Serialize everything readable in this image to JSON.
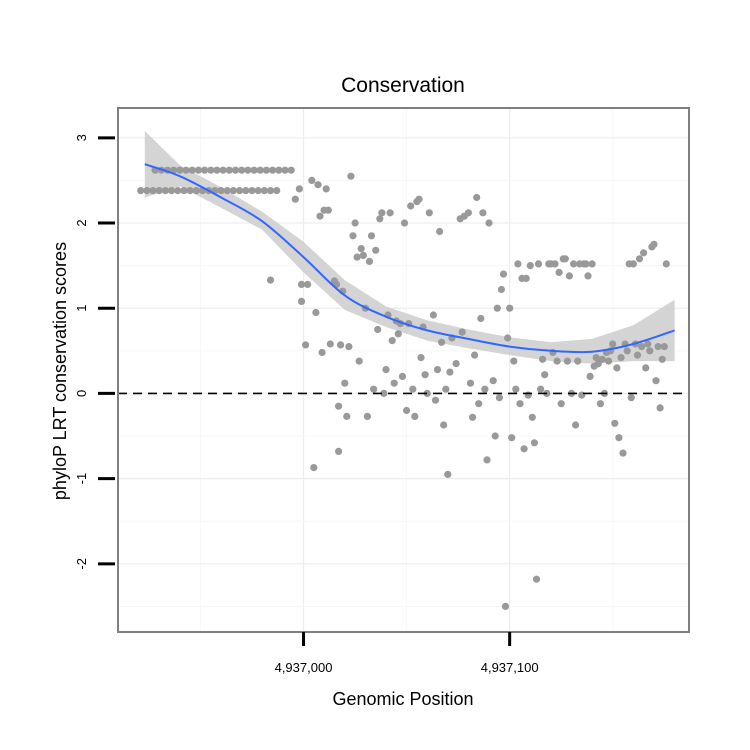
{
  "chart_data": {
    "type": "scatter",
    "title": "Conservation",
    "xlabel": "Genomic Position",
    "ylabel": "phyloP LRT conservation scores",
    "xlim": [
      4936910,
      4937187
    ],
    "ylim": [
      -2.8,
      3.35
    ],
    "x_ticks": [
      4937000,
      4937100
    ],
    "x_tick_labels": [
      "4,937,000",
      "4,937,100"
    ],
    "y_ticks": [
      -2,
      -1,
      0,
      1,
      2,
      3
    ],
    "y_tick_labels": [
      "-2",
      "-1",
      "0",
      "1",
      "2",
      "3"
    ],
    "grid": true,
    "reference_line_y": 0,
    "colors": {
      "points": "#999999",
      "trend": "#3366ff",
      "band": "#cccccc",
      "panel_border": "#7f7f7f"
    },
    "trend": {
      "x": [
        4936923,
        4936940,
        4936960,
        4936980,
        4937000,
        4937020,
        4937040,
        4937060,
        4937080,
        4937100,
        4937120,
        4937140,
        4937160,
        4937180
      ],
      "y": [
        2.69,
        2.55,
        2.3,
        2.02,
        1.6,
        1.15,
        0.9,
        0.74,
        0.64,
        0.55,
        0.5,
        0.49,
        0.58,
        0.74
      ],
      "lower": [
        2.3,
        2.43,
        2.18,
        1.92,
        1.42,
        0.98,
        0.78,
        0.62,
        0.53,
        0.45,
        0.38,
        0.35,
        0.38,
        0.38
      ],
      "upper": [
        3.08,
        2.68,
        2.42,
        2.13,
        1.78,
        1.33,
        1.02,
        0.86,
        0.75,
        0.66,
        0.6,
        0.64,
        0.8,
        1.1
      ]
    },
    "points": [
      {
        "x": 4936921,
        "y": 2.38
      },
      {
        "x": 4936924,
        "y": 2.38
      },
      {
        "x": 4936927,
        "y": 2.38
      },
      {
        "x": 4936930,
        "y": 2.38
      },
      {
        "x": 4936933,
        "y": 2.38
      },
      {
        "x": 4936936,
        "y": 2.38
      },
      {
        "x": 4936939,
        "y": 2.38
      },
      {
        "x": 4936942,
        "y": 2.38
      },
      {
        "x": 4936945,
        "y": 2.38
      },
      {
        "x": 4936948,
        "y": 2.38
      },
      {
        "x": 4936951,
        "y": 2.38
      },
      {
        "x": 4936954,
        "y": 2.38
      },
      {
        "x": 4936957,
        "y": 2.38
      },
      {
        "x": 4936960,
        "y": 2.38
      },
      {
        "x": 4936963,
        "y": 2.38
      },
      {
        "x": 4936966,
        "y": 2.38
      },
      {
        "x": 4936969,
        "y": 2.38
      },
      {
        "x": 4936972,
        "y": 2.38
      },
      {
        "x": 4936975,
        "y": 2.38
      },
      {
        "x": 4936978,
        "y": 2.38
      },
      {
        "x": 4936981,
        "y": 2.38
      },
      {
        "x": 4936984,
        "y": 2.38
      },
      {
        "x": 4936987,
        "y": 2.38
      },
      {
        "x": 4936928,
        "y": 2.62
      },
      {
        "x": 4936931,
        "y": 2.62
      },
      {
        "x": 4936934,
        "y": 2.62
      },
      {
        "x": 4936937,
        "y": 2.62
      },
      {
        "x": 4936940,
        "y": 2.62
      },
      {
        "x": 4936943,
        "y": 2.62
      },
      {
        "x": 4936946,
        "y": 2.62
      },
      {
        "x": 4936949,
        "y": 2.62
      },
      {
        "x": 4936952,
        "y": 2.62
      },
      {
        "x": 4936955,
        "y": 2.62
      },
      {
        "x": 4936958,
        "y": 2.62
      },
      {
        "x": 4936961,
        "y": 2.62
      },
      {
        "x": 4936964,
        "y": 2.62
      },
      {
        "x": 4936967,
        "y": 2.62
      },
      {
        "x": 4936970,
        "y": 2.62
      },
      {
        "x": 4936973,
        "y": 2.62
      },
      {
        "x": 4936976,
        "y": 2.62
      },
      {
        "x": 4936979,
        "y": 2.62
      },
      {
        "x": 4936982,
        "y": 2.62
      },
      {
        "x": 4936985,
        "y": 2.62
      },
      {
        "x": 4936988,
        "y": 2.62
      },
      {
        "x": 4936991,
        "y": 2.62
      },
      {
        "x": 4936994,
        "y": 2.62
      },
      {
        "x": 4936984,
        "y": 1.33
      },
      {
        "x": 4936996,
        "y": 2.28
      },
      {
        "x": 4936998,
        "y": 2.4
      },
      {
        "x": 4936999,
        "y": 1.28
      },
      {
        "x": 4936999,
        "y": 1.08
      },
      {
        "x": 4937001,
        "y": 0.57
      },
      {
        "x": 4937002,
        "y": 1.28
      },
      {
        "x": 4937004,
        "y": 2.5
      },
      {
        "x": 4937005,
        "y": -0.87
      },
      {
        "x": 4937006,
        "y": 0.95
      },
      {
        "x": 4937007,
        "y": 2.45
      },
      {
        "x": 4937008,
        "y": 2.08
      },
      {
        "x": 4937009,
        "y": 0.48
      },
      {
        "x": 4937010,
        "y": 2.15
      },
      {
        "x": 4937011,
        "y": 2.4
      },
      {
        "x": 4937012,
        "y": 2.15
      },
      {
        "x": 4937013,
        "y": 0.58
      },
      {
        "x": 4937015,
        "y": 1.32
      },
      {
        "x": 4937016,
        "y": 1.28
      },
      {
        "x": 4937017,
        "y": -0.68
      },
      {
        "x": 4937017,
        "y": -0.15
      },
      {
        "x": 4937018,
        "y": 0.57
      },
      {
        "x": 4937019,
        "y": 1.2
      },
      {
        "x": 4937020,
        "y": 0.12
      },
      {
        "x": 4937021,
        "y": -0.27
      },
      {
        "x": 4937022,
        "y": 0.55
      },
      {
        "x": 4937023,
        "y": 2.55
      },
      {
        "x": 4937024,
        "y": 1.85
      },
      {
        "x": 4937025,
        "y": 2.0
      },
      {
        "x": 4937026,
        "y": 1.6
      },
      {
        "x": 4937027,
        "y": 0.38
      },
      {
        "x": 4937028,
        "y": 1.7
      },
      {
        "x": 4937029,
        "y": 1.62
      },
      {
        "x": 4937030,
        "y": 1.0
      },
      {
        "x": 4937031,
        "y": -0.27
      },
      {
        "x": 4937032,
        "y": 1.55
      },
      {
        "x": 4937033,
        "y": 1.85
      },
      {
        "x": 4937034,
        "y": 0.05
      },
      {
        "x": 4937035,
        "y": 1.68
      },
      {
        "x": 4937036,
        "y": 0.75
      },
      {
        "x": 4937037,
        "y": 2.05
      },
      {
        "x": 4937038,
        "y": 2.12
      },
      {
        "x": 4937039,
        "y": 0.0
      },
      {
        "x": 4937040,
        "y": 0.28
      },
      {
        "x": 4937041,
        "y": 0.92
      },
      {
        "x": 4937042,
        "y": 2.12
      },
      {
        "x": 4937043,
        "y": 0.62
      },
      {
        "x": 4937044,
        "y": 0.12
      },
      {
        "x": 4937045,
        "y": 0.85
      },
      {
        "x": 4937046,
        "y": 0.7
      },
      {
        "x": 4937047,
        "y": 0.82
      },
      {
        "x": 4937048,
        "y": 0.2
      },
      {
        "x": 4937049,
        "y": 2.0
      },
      {
        "x": 4937050,
        "y": -0.2
      },
      {
        "x": 4937051,
        "y": 0.82
      },
      {
        "x": 4937052,
        "y": 2.2
      },
      {
        "x": 4937053,
        "y": 0.05
      },
      {
        "x": 4937054,
        "y": -0.27
      },
      {
        "x": 4937055,
        "y": 2.25
      },
      {
        "x": 4937056,
        "y": 2.28
      },
      {
        "x": 4937057,
        "y": 0.42
      },
      {
        "x": 4937058,
        "y": 0.78
      },
      {
        "x": 4937059,
        "y": 0.22
      },
      {
        "x": 4937060,
        "y": 0.0
      },
      {
        "x": 4937061,
        "y": 2.12
      },
      {
        "x": 4937063,
        "y": 0.92
      },
      {
        "x": 4937064,
        "y": -0.08
      },
      {
        "x": 4937065,
        "y": 0.28
      },
      {
        "x": 4937066,
        "y": 1.9
      },
      {
        "x": 4937067,
        "y": 0.6
      },
      {
        "x": 4937068,
        "y": -0.37
      },
      {
        "x": 4937069,
        "y": 0.05
      },
      {
        "x": 4937070,
        "y": -0.95
      },
      {
        "x": 4937071,
        "y": 0.25
      },
      {
        "x": 4937072,
        "y": 0.65
      },
      {
        "x": 4937074,
        "y": 0.35
      },
      {
        "x": 4937076,
        "y": 2.05
      },
      {
        "x": 4937077,
        "y": 0.72
      },
      {
        "x": 4937078,
        "y": 2.08
      },
      {
        "x": 4937080,
        "y": 2.12
      },
      {
        "x": 4937081,
        "y": 0.12
      },
      {
        "x": 4937082,
        "y": -0.28
      },
      {
        "x": 4937083,
        "y": 0.45
      },
      {
        "x": 4937084,
        "y": 2.3
      },
      {
        "x": 4937085,
        "y": -0.12
      },
      {
        "x": 4937086,
        "y": 0.88
      },
      {
        "x": 4937087,
        "y": 2.12
      },
      {
        "x": 4937088,
        "y": 0.05
      },
      {
        "x": 4937089,
        "y": -0.78
      },
      {
        "x": 4937090,
        "y": 2.0
      },
      {
        "x": 4937092,
        "y": 0.15
      },
      {
        "x": 4937093,
        "y": -0.5
      },
      {
        "x": 4937094,
        "y": 1.0
      },
      {
        "x": 4937095,
        "y": -0.05
      },
      {
        "x": 4937096,
        "y": 1.22
      },
      {
        "x": 4937097,
        "y": 1.4
      },
      {
        "x": 4937098,
        "y": -2.5
      },
      {
        "x": 4937099,
        "y": 0.65
      },
      {
        "x": 4937100,
        "y": 1.0
      },
      {
        "x": 4937101,
        "y": -0.52
      },
      {
        "x": 4937102,
        "y": 0.38
      },
      {
        "x": 4937103,
        "y": 0.05
      },
      {
        "x": 4937104,
        "y": 1.52
      },
      {
        "x": 4937105,
        "y": -0.12
      },
      {
        "x": 4937106,
        "y": 1.35
      },
      {
        "x": 4937107,
        "y": -0.65
      },
      {
        "x": 4937108,
        "y": 1.35
      },
      {
        "x": 4937109,
        "y": -0.02
      },
      {
        "x": 4937110,
        "y": 1.5
      },
      {
        "x": 4937111,
        "y": -0.28
      },
      {
        "x": 4937112,
        "y": -0.58
      },
      {
        "x": 4937113,
        "y": -2.18
      },
      {
        "x": 4937114,
        "y": 1.52
      },
      {
        "x": 4937115,
        "y": 0.05
      },
      {
        "x": 4937116,
        "y": 0.4
      },
      {
        "x": 4937117,
        "y": 0.22
      },
      {
        "x": 4937118,
        "y": 0.0
      },
      {
        "x": 4937119,
        "y": 1.52
      },
      {
        "x": 4937120,
        "y": 1.52
      },
      {
        "x": 4937121,
        "y": 0.48
      },
      {
        "x": 4937122,
        "y": 1.52
      },
      {
        "x": 4937123,
        "y": 0.38
      },
      {
        "x": 4937124,
        "y": 1.42
      },
      {
        "x": 4937125,
        "y": -0.12
      },
      {
        "x": 4937126,
        "y": 1.58
      },
      {
        "x": 4937127,
        "y": 1.58
      },
      {
        "x": 4937128,
        "y": 0.38
      },
      {
        "x": 4937129,
        "y": 1.38
      },
      {
        "x": 4937130,
        "y": 0.0
      },
      {
        "x": 4937131,
        "y": 1.52
      },
      {
        "x": 4937132,
        "y": -0.37
      },
      {
        "x": 4937133,
        "y": 0.38
      },
      {
        "x": 4937134,
        "y": 1.52
      },
      {
        "x": 4937135,
        "y": -0.02
      },
      {
        "x": 4937136,
        "y": 1.52
      },
      {
        "x": 4937137,
        "y": 1.52
      },
      {
        "x": 4937138,
        "y": 1.38
      },
      {
        "x": 4937139,
        "y": 0.2
      },
      {
        "x": 4937140,
        "y": 1.52
      },
      {
        "x": 4937141,
        "y": 0.32
      },
      {
        "x": 4937142,
        "y": 0.42
      },
      {
        "x": 4937143,
        "y": 0.35
      },
      {
        "x": 4937144,
        "y": -0.12
      },
      {
        "x": 4937145,
        "y": 0.4
      },
      {
        "x": 4937146,
        "y": 0.0
      },
      {
        "x": 4937147,
        "y": 0.48
      },
      {
        "x": 4937148,
        "y": 0.38
      },
      {
        "x": 4937149,
        "y": 0.5
      },
      {
        "x": 4937150,
        "y": 0.58
      },
      {
        "x": 4937151,
        "y": -0.35
      },
      {
        "x": 4937152,
        "y": 0.3
      },
      {
        "x": 4937153,
        "y": -0.52
      },
      {
        "x": 4937154,
        "y": 0.42
      },
      {
        "x": 4937155,
        "y": -0.7
      },
      {
        "x": 4937156,
        "y": 0.58
      },
      {
        "x": 4937157,
        "y": 0.5
      },
      {
        "x": 4937158,
        "y": 1.52
      },
      {
        "x": 4937159,
        "y": -0.05
      },
      {
        "x": 4937160,
        "y": 1.52
      },
      {
        "x": 4937161,
        "y": 0.58
      },
      {
        "x": 4937162,
        "y": 0.45
      },
      {
        "x": 4937163,
        "y": 1.58
      },
      {
        "x": 4937164,
        "y": 0.55
      },
      {
        "x": 4937165,
        "y": 1.65
      },
      {
        "x": 4937166,
        "y": 0.3
      },
      {
        "x": 4937167,
        "y": 0.58
      },
      {
        "x": 4937168,
        "y": 0.5
      },
      {
        "x": 4937169,
        "y": 1.72
      },
      {
        "x": 4937170,
        "y": 1.75
      },
      {
        "x": 4937171,
        "y": 0.15
      },
      {
        "x": 4937172,
        "y": 0.55
      },
      {
        "x": 4937173,
        "y": -0.17
      },
      {
        "x": 4937174,
        "y": 0.4
      },
      {
        "x": 4937175,
        "y": 0.55
      },
      {
        "x": 4937176,
        "y": 1.52
      }
    ]
  }
}
